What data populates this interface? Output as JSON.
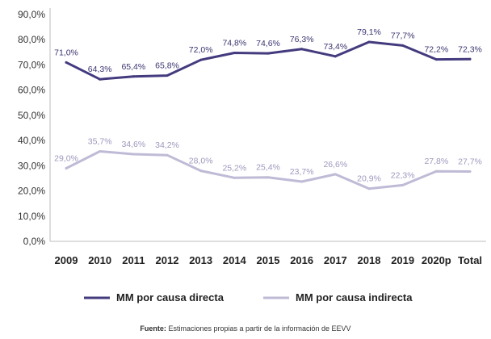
{
  "chart_data": {
    "type": "line",
    "categories": [
      "2009",
      "2010",
      "2011",
      "2012",
      "2013",
      "2014",
      "2015",
      "2016",
      "2017",
      "2018",
      "2019",
      "2020p",
      "Total"
    ],
    "ylim": [
      0,
      90
    ],
    "yticks": [
      0,
      10,
      20,
      30,
      40,
      50,
      60,
      70,
      80,
      90
    ],
    "ytick_labels": [
      "0,0%",
      "10,0%",
      "20,0%",
      "30,0%",
      "40,0%",
      "50,0%",
      "60,0%",
      "70,0%",
      "80,0%",
      "90,0%"
    ],
    "grid": false,
    "legend_position": "bottom",
    "series": [
      {
        "name": "MM por causa directa",
        "color": "#433b7e",
        "values": [
          71.0,
          64.3,
          65.4,
          65.8,
          72.0,
          74.8,
          74.6,
          76.3,
          73.4,
          79.1,
          77.7,
          72.2,
          72.3
        ],
        "labels": [
          "71,0%",
          "64,3%",
          "65,4%",
          "65,8%",
          "72,0%",
          "74,8%",
          "74,6%",
          "76,3%",
          "73,4%",
          "79,1%",
          "77,7%",
          "72,2%",
          "72,3%"
        ]
      },
      {
        "name": "MM por causa indirecta",
        "color": "#bfbbd6",
        "values": [
          29.0,
          35.7,
          34.6,
          34.2,
          28.0,
          25.2,
          25.4,
          23.7,
          26.6,
          20.9,
          22.3,
          27.8,
          27.7
        ],
        "labels": [
          "29,0%",
          "35,7%",
          "34,6%",
          "34,2%",
          "28,0%",
          "25,2%",
          "25,4%",
          "23,7%",
          "26,6%",
          "20,9%",
          "22,3%",
          "27,8%",
          "27,7%"
        ]
      }
    ]
  },
  "source": {
    "label": "Fuente:",
    "text": "Estimaciones propias a partir de la información de EEVV"
  }
}
